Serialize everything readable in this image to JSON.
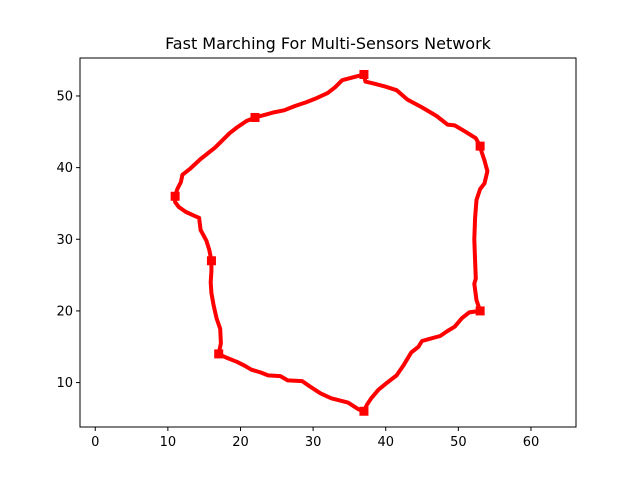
{
  "chart_data": {
    "type": "line",
    "title": "Fast Marching For Multi-Sensors Network",
    "xlabel": "",
    "ylabel": "",
    "xlim": [
      -2.1,
      66.2
    ],
    "ylim": [
      3.8,
      55.3
    ],
    "xticks": [
      0,
      10,
      20,
      30,
      40,
      50,
      60
    ],
    "yticks": [
      10,
      20,
      30,
      40,
      50
    ],
    "grid": false,
    "legend": "none",
    "series_color": "#ff0000",
    "sensors": [
      {
        "x": 37,
        "y": 53
      },
      {
        "x": 53,
        "y": 43
      },
      {
        "x": 53,
        "y": 20
      },
      {
        "x": 37,
        "y": 6
      },
      {
        "x": 17,
        "y": 14
      },
      {
        "x": 16,
        "y": 27
      },
      {
        "x": 11,
        "y": 36
      },
      {
        "x": 22,
        "y": 47
      }
    ],
    "path": [
      [
        37,
        53
      ],
      [
        37.2,
        52.0
      ],
      [
        38.5,
        51.7
      ],
      [
        40,
        51.3
      ],
      [
        41.5,
        50.8
      ],
      [
        43,
        49.5
      ],
      [
        45,
        48.4
      ],
      [
        47,
        47.2
      ],
      [
        48.5,
        46.0
      ],
      [
        49.5,
        45.9
      ],
      [
        51,
        45.0
      ],
      [
        52.4,
        44.1
      ],
      [
        53,
        43.0
      ],
      [
        53.2,
        42.2
      ],
      [
        53.6,
        41.0
      ],
      [
        54.0,
        39.5
      ],
      [
        53.6,
        37.8
      ],
      [
        53.0,
        37.0
      ],
      [
        52.5,
        35.5
      ],
      [
        52.3,
        33.0
      ],
      [
        52.2,
        30.0
      ],
      [
        52.3,
        27.0
      ],
      [
        52.4,
        24.5
      ],
      [
        52.2,
        23.8
      ],
      [
        52.5,
        21.5
      ],
      [
        53,
        20
      ],
      [
        51.5,
        19.8
      ],
      [
        50.5,
        19.0
      ],
      [
        49.5,
        17.8
      ],
      [
        48.5,
        17.2
      ],
      [
        47.5,
        16.5
      ],
      [
        46,
        16.1
      ],
      [
        45,
        15.8
      ],
      [
        44.5,
        15.0
      ],
      [
        43.5,
        14.2
      ],
      [
        42.5,
        12.5
      ],
      [
        41.5,
        11.0
      ],
      [
        40.2,
        10.0
      ],
      [
        39,
        9.0
      ],
      [
        38,
        7.8
      ],
      [
        37.4,
        6.9
      ],
      [
        37,
        6
      ],
      [
        36.2,
        6.3
      ],
      [
        34.8,
        7.2
      ],
      [
        32.5,
        7.8
      ],
      [
        31,
        8.5
      ],
      [
        29.5,
        9.5
      ],
      [
        28.5,
        10.2
      ],
      [
        26.5,
        10.3
      ],
      [
        25.5,
        10.9
      ],
      [
        23.8,
        11.0
      ],
      [
        22.8,
        11.4
      ],
      [
        21.5,
        11.8
      ],
      [
        20.5,
        12.4
      ],
      [
        19.5,
        12.9
      ],
      [
        18,
        13.5
      ],
      [
        17,
        14
      ],
      [
        17.3,
        15.5
      ],
      [
        17.2,
        17.5
      ],
      [
        16.7,
        19.0
      ],
      [
        16.3,
        20.8
      ],
      [
        16.0,
        22.5
      ],
      [
        15.9,
        24.0
      ],
      [
        16.0,
        25.5
      ],
      [
        16,
        27
      ],
      [
        15.7,
        28.5
      ],
      [
        15.3,
        29.8
      ],
      [
        14.5,
        31.3
      ],
      [
        14.3,
        33.0
      ],
      [
        13.8,
        33.2
      ],
      [
        12.5,
        33.8
      ],
      [
        11.5,
        34.5
      ],
      [
        11.0,
        35.2
      ],
      [
        11,
        36
      ],
      [
        11.3,
        37.0
      ],
      [
        11.8,
        38.0
      ],
      [
        12.0,
        39.0
      ],
      [
        13.0,
        39.8
      ],
      [
        14.5,
        41.2
      ],
      [
        16.5,
        42.8
      ],
      [
        17.5,
        43.8
      ],
      [
        18.5,
        44.8
      ],
      [
        19.5,
        45.6
      ],
      [
        20.8,
        46.5
      ],
      [
        22,
        47
      ],
      [
        23.5,
        47.4
      ],
      [
        24.5,
        47.7
      ],
      [
        26,
        48.0
      ],
      [
        27.5,
        48.6
      ],
      [
        29,
        49.1
      ],
      [
        30.5,
        49.7
      ],
      [
        32,
        50.4
      ],
      [
        33.0,
        51.2
      ],
      [
        34.0,
        52.2
      ],
      [
        35.5,
        52.6
      ],
      [
        37,
        53
      ]
    ]
  }
}
